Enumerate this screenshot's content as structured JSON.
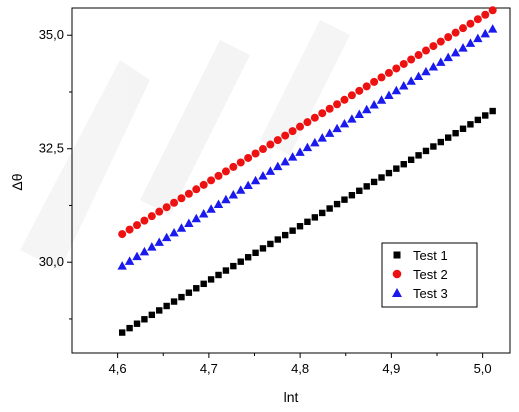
{
  "chart_data": {
    "type": "scatter",
    "xlabel": "lnt",
    "ylabel": "Δθ",
    "xlim": [
      4.55,
      5.03
    ],
    "ylim": [
      28.0,
      35.6
    ],
    "xticks": [
      "4,6",
      "4,7",
      "4,8",
      "4,9",
      "5,0"
    ],
    "xtick_values": [
      4.6,
      4.7,
      4.8,
      4.9,
      5.0
    ],
    "yticks": [
      "30,0",
      "32,5",
      "35,0"
    ],
    "ytick_values": [
      30.0,
      32.5,
      35.0
    ],
    "grid": false,
    "legend_position": "lower-right",
    "x_start": 4.605,
    "x_end": 5.011,
    "point_count": 51,
    "series": [
      {
        "name": "Test 1",
        "marker": "square",
        "color": "#000000",
        "y_start": 28.45,
        "y_end": 33.33
      },
      {
        "name": "Test 2",
        "marker": "circle",
        "color": "#ee1111",
        "y_start": 30.62,
        "y_end": 35.55
      },
      {
        "name": "Test 3",
        "marker": "triangle",
        "color": "#1a1aee",
        "y_start": 29.92,
        "y_end": 35.14
      }
    ]
  }
}
